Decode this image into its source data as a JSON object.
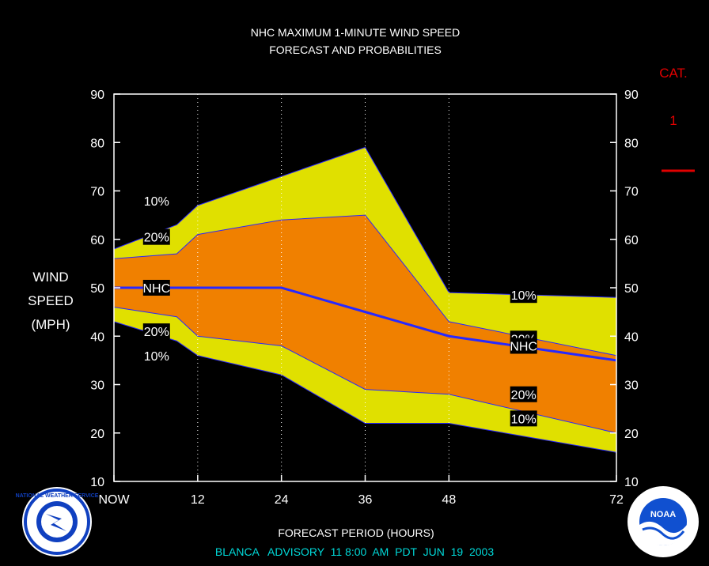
{
  "title_line1": "NHC MAXIMUM 1-MINUTE WIND SPEED",
  "title_line2": "FORECAST AND PROBABILITIES",
  "ylabel_lines": [
    "WIND",
    "SPEED",
    "(MPH)"
  ],
  "xlabel": "FORECAST PERIOD (HOURS)",
  "footer": "BLANCA   ADVISORY  11 8:00  AM  PDT  JUN  19  2003",
  "category": {
    "label": "CAT.",
    "value": "1",
    "color": "#e00000"
  },
  "colors": {
    "outer_band": "#e0e000",
    "inner_band": "#f08000",
    "nhc_line": "#2828ff",
    "axis": "#ffffff",
    "gridline": "#ffffff",
    "title_text": "#ffffff",
    "footer_text": "#00d8d8"
  },
  "logos": [
    {
      "name": "nws-logo",
      "text": "NATIONAL WEATHER SERVICE"
    },
    {
      "name": "noaa-logo",
      "text": "NOAA"
    }
  ],
  "chart_data": {
    "type": "area",
    "xlim": [
      0,
      72
    ],
    "ylim": [
      10,
      90
    ],
    "yticks": [
      10,
      20,
      30,
      40,
      50,
      60,
      70,
      80,
      90
    ],
    "xticks": [
      {
        "value": 0,
        "label": "NOW"
      },
      {
        "value": 12,
        "label": "12"
      },
      {
        "value": 24,
        "label": "24"
      },
      {
        "value": 36,
        "label": "36"
      },
      {
        "value": 48,
        "label": "48"
      },
      {
        "value": 72,
        "label": "72"
      }
    ],
    "gridlines_x": [
      12,
      24,
      36,
      48
    ],
    "grid": true,
    "series": [
      {
        "name": "10%",
        "band": "upper-10",
        "x": [
          0,
          9,
          12,
          24,
          36,
          48,
          72
        ],
        "values": [
          58,
          63,
          67,
          73,
          79,
          49,
          48
        ]
      },
      {
        "name": "20%",
        "band": "upper-20",
        "x": [
          0,
          9,
          12,
          24,
          36,
          48,
          72
        ],
        "values": [
          56,
          57,
          61,
          64,
          65,
          43,
          36
        ]
      },
      {
        "name": "NHC",
        "band": "forecast",
        "x": [
          0,
          12,
          24,
          36,
          48,
          72
        ],
        "values": [
          50,
          50,
          50,
          45,
          40,
          35
        ]
      },
      {
        "name": "20%",
        "band": "lower-20",
        "x": [
          0,
          9,
          12,
          24,
          36,
          48,
          72
        ],
        "values": [
          46,
          44,
          40,
          38,
          29,
          28,
          20
        ]
      },
      {
        "name": "10%",
        "band": "lower-10",
        "x": [
          0,
          9,
          12,
          24,
          36,
          48,
          72
        ],
        "values": [
          43,
          39,
          36,
          32,
          22,
          22,
          16
        ]
      }
    ],
    "labels": [
      {
        "text": "10%",
        "x": 6.1,
        "y": 68
      },
      {
        "text": "20%",
        "x": 6.1,
        "y": 60.5
      },
      {
        "text": "NHC",
        "x": 6.1,
        "y": 50
      },
      {
        "text": "20%",
        "x": 6.1,
        "y": 41
      },
      {
        "text": "10%",
        "x": 6.1,
        "y": 36
      },
      {
        "text": "10%",
        "x": 58.7,
        "y": 48.5
      },
      {
        "text": "20%",
        "x": 58.7,
        "y": 39.5
      },
      {
        "text": "NHC",
        "x": 58.7,
        "y": 38
      },
      {
        "text": "20%",
        "x": 58.7,
        "y": 28
      },
      {
        "text": "10%",
        "x": 58.7,
        "y": 23
      }
    ]
  }
}
